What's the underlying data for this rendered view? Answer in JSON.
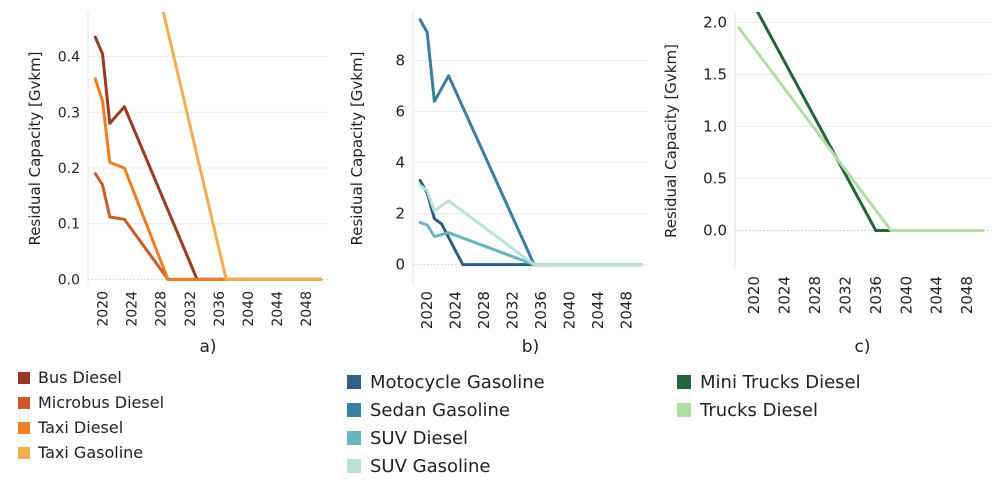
{
  "colors": {
    "Bus Diesel": "#9c3b22",
    "Microbus Diesel": "#cf5a2a",
    "Taxi Diesel": "#ef7d22",
    "Taxi Gasoline": "#f5ad50",
    "Motocycle Gasoline": "#2e5f86",
    "Sedan Gasoline": "#3a7f9e",
    "SUV Diesel": "#67b5c0",
    "SUV Gasoline": "#b9e2d8",
    "Mini Trucks Diesel": "#25653d",
    "Trucks Diesel": "#b3dea3"
  },
  "chart_data": [
    {
      "type": "line",
      "panel_label": "a)",
      "ylabel": "Residual Capacity [Gvkm]",
      "xlabel": "",
      "xlim": [
        2018,
        2051
      ],
      "ylim": [
        -0.01,
        0.48
      ],
      "xticks": [
        2020,
        2024,
        2028,
        2032,
        2036,
        2040,
        2044,
        2048
      ],
      "yticks": [
        0.0,
        0.1,
        0.2,
        0.3,
        0.4
      ],
      "ytick_labels": [
        "0.0",
        "0.1",
        "0.2",
        "0.3",
        "0.4"
      ],
      "grid": "horizontal",
      "series": [
        {
          "name": "Bus Diesel",
          "x": [
            2019,
            2020,
            2021,
            2023,
            2033,
            2050
          ],
          "values": [
            0.435,
            0.405,
            0.28,
            0.31,
            0.0,
            0.0
          ]
        },
        {
          "name": "Microbus Diesel",
          "x": [
            2019,
            2020,
            2021,
            2023,
            2029,
            2050
          ],
          "values": [
            0.19,
            0.17,
            0.112,
            0.108,
            0.0,
            0.0
          ]
        },
        {
          "name": "Taxi Diesel",
          "x": [
            2019,
            2020,
            2021,
            2023,
            2029,
            2050
          ],
          "values": [
            0.36,
            0.32,
            0.21,
            0.2,
            0.0,
            0.0
          ]
        },
        {
          "name": "Taxi Gasoline",
          "x": [
            2028,
            2037,
            2050
          ],
          "values": [
            0.5,
            0.0,
            0.0
          ]
        }
      ]
    },
    {
      "type": "line",
      "panel_label": "b)",
      "ylabel": "Residual Capacity [Gvkm]",
      "xlabel": "",
      "xlim": [
        2018,
        2051
      ],
      "ylim": [
        -0.8,
        9.9
      ],
      "xticks": [
        2020,
        2024,
        2028,
        2032,
        2036,
        2040,
        2044,
        2048
      ],
      "yticks": [
        0,
        2,
        4,
        6,
        8
      ],
      "ytick_labels": [
        "0",
        "2",
        "4",
        "6",
        "8"
      ],
      "grid": "horizontal",
      "series": [
        {
          "name": "Motocycle Gasoline",
          "x": [
            2019,
            2020,
            2021,
            2022,
            2025,
            2050
          ],
          "values": [
            3.3,
            2.8,
            1.8,
            1.6,
            0.0,
            0.0
          ]
        },
        {
          "name": "Sedan Gasoline",
          "x": [
            2019,
            2020,
            2021,
            2023,
            2035,
            2050
          ],
          "values": [
            9.6,
            9.1,
            6.4,
            7.4,
            0.0,
            0.0
          ]
        },
        {
          "name": "SUV Diesel",
          "x": [
            2019,
            2020,
            2021,
            2023,
            2035,
            2050
          ],
          "values": [
            1.65,
            1.55,
            1.1,
            1.25,
            0.0,
            0.0
          ]
        },
        {
          "name": "SUV Gasoline",
          "x": [
            2019,
            2020,
            2021,
            2023,
            2035,
            2050
          ],
          "values": [
            3.1,
            2.9,
            2.1,
            2.5,
            0.0,
            0.0
          ]
        }
      ]
    },
    {
      "type": "line",
      "panel_label": "c)",
      "ylabel": "Residual Capacity [Gvkm]",
      "xlabel": "",
      "xlim": [
        2017.5,
        2051
      ],
      "ylim": [
        -0.38,
        2.1
      ],
      "xticks": [
        2020,
        2024,
        2028,
        2032,
        2036,
        2040,
        2044,
        2048
      ],
      "yticks": [
        0.0,
        0.5,
        1.0,
        1.5,
        2.0
      ],
      "ytick_labels": [
        "0.0",
        "0.5",
        "1.0",
        "1.5",
        "2.0"
      ],
      "grid": "horizontal",
      "series": [
        {
          "name": "Mini Trucks Diesel",
          "x": [
            2019,
            2036,
            2050
          ],
          "values": [
            2.3,
            0.0,
            0.0
          ]
        },
        {
          "name": "Trucks Diesel",
          "x": [
            2018,
            2038,
            2050
          ],
          "values": [
            1.95,
            0.0,
            0.0
          ]
        }
      ]
    }
  ],
  "legends": {
    "a": [
      "Bus Diesel",
      "Microbus Diesel",
      "Taxi Diesel",
      "Taxi Gasoline"
    ],
    "b": [
      "Motocycle Gasoline",
      "Sedan Gasoline",
      "SUV Diesel",
      "SUV Gasoline"
    ],
    "c": [
      "Mini Trucks Diesel",
      "Trucks Diesel"
    ]
  }
}
